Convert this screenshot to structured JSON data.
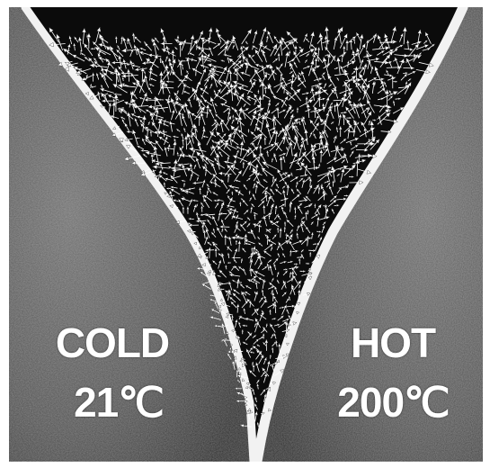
{
  "left_cylinder": {
    "name": "COLD",
    "temperature": "21℃"
  },
  "right_cylinder": {
    "name": "HOT",
    "temperature": "200℃"
  },
  "colors": {
    "background": "#0b0b0b",
    "cylinder_surface": "#5a5a5a",
    "cylinder_edge": "#f2f2f2",
    "text": "#ffffff",
    "vectors": "#ffffff"
  }
}
